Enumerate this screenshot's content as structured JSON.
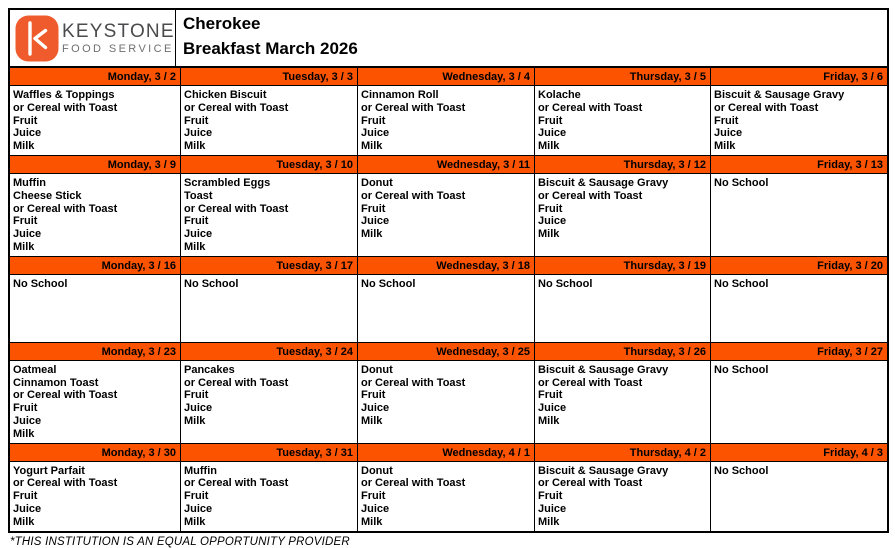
{
  "brand": {
    "name": "KEYSTONE",
    "tagline": "FOOD SERVICE",
    "logo_color": "#EF5B2D"
  },
  "header": {
    "school": "Cherokee",
    "title": "Breakfast March 2026"
  },
  "colors": {
    "day_header_bg": "#FB5300",
    "grid_border": "#000000",
    "brand_name_color": "#4B4B4D",
    "brand_tagline_color": "#6E6F72"
  },
  "calendar": {
    "weeks": [
      [
        {
          "day": "Monday, 3 / 2",
          "items": [
            "Waffles & Toppings",
            "or Cereal with Toast",
            "Fruit",
            "Juice",
            "Milk"
          ]
        },
        {
          "day": "Tuesday, 3 / 3",
          "items": [
            "Chicken Biscuit",
            "or Cereal with Toast",
            "Fruit",
            "Juice",
            "Milk"
          ]
        },
        {
          "day": "Wednesday, 3 / 4",
          "items": [
            "Cinnamon Roll",
            "or Cereal with Toast",
            "Fruit",
            "Juice",
            "Milk"
          ]
        },
        {
          "day": "Thursday, 3 / 5",
          "items": [
            "Kolache",
            "or Cereal with Toast",
            "Fruit",
            "Juice",
            "Milk"
          ]
        },
        {
          "day": "Friday, 3 / 6",
          "items": [
            "Biscuit & Sausage Gravy",
            "or Cereal with Toast",
            "Fruit",
            "Juice",
            "Milk"
          ]
        }
      ],
      [
        {
          "day": "Monday, 3 / 9",
          "items": [
            "Muffin",
            "Cheese Stick",
            "or Cereal with Toast",
            "Fruit",
            "Juice",
            "Milk"
          ]
        },
        {
          "day": "Tuesday, 3 / 10",
          "items": [
            "Scrambled Eggs",
            "Toast",
            "or Cereal with Toast",
            "Fruit",
            "Juice",
            "Milk"
          ]
        },
        {
          "day": "Wednesday, 3 / 11",
          "items": [
            "Donut",
            "or Cereal with Toast",
            "Fruit",
            "Juice",
            "Milk"
          ]
        },
        {
          "day": "Thursday, 3 / 12",
          "items": [
            "Biscuit & Sausage Gravy",
            "or Cereal with Toast",
            "Fruit",
            "Juice",
            "Milk"
          ]
        },
        {
          "day": "Friday, 3 / 13",
          "items": [
            "No School"
          ]
        }
      ],
      [
        {
          "day": "Monday, 3 / 16",
          "items": [
            "No School"
          ]
        },
        {
          "day": "Tuesday, 3 / 17",
          "items": [
            "No School"
          ]
        },
        {
          "day": "Wednesday, 3 / 18",
          "items": [
            "No School"
          ]
        },
        {
          "day": "Thursday, 3 / 19",
          "items": [
            "No School"
          ]
        },
        {
          "day": "Friday, 3 / 20",
          "items": [
            "No School"
          ]
        }
      ],
      [
        {
          "day": "Monday, 3 / 23",
          "items": [
            "Oatmeal",
            "Cinnamon Toast",
            "or Cereal with Toast",
            "Fruit",
            "Juice",
            "Milk"
          ]
        },
        {
          "day": "Tuesday, 3 / 24",
          "items": [
            "Pancakes",
            "or Cereal with Toast",
            "Fruit",
            "Juice",
            "Milk"
          ]
        },
        {
          "day": "Wednesday, 3 / 25",
          "items": [
            "Donut",
            "or Cereal with Toast",
            "Fruit",
            "Juice",
            "Milk"
          ]
        },
        {
          "day": "Thursday, 3 / 26",
          "items": [
            "Biscuit & Sausage Gravy",
            "or Cereal with Toast",
            "Fruit",
            "Juice",
            "Milk"
          ]
        },
        {
          "day": "Friday, 3 / 27",
          "items": [
            "No School"
          ]
        }
      ],
      [
        {
          "day": "Monday, 3 / 30",
          "items": [
            "Yogurt Parfait",
            "or Cereal with Toast",
            "Fruit",
            "Juice",
            "Milk"
          ]
        },
        {
          "day": "Tuesday, 3 / 31",
          "items": [
            "Muffin",
            "or Cereal with Toast",
            "Fruit",
            "Juice",
            "Milk"
          ]
        },
        {
          "day": "Wednesday, 4 / 1",
          "items": [
            "Donut",
            "or Cereal with Toast",
            "Fruit",
            "Juice",
            "Milk"
          ]
        },
        {
          "day": "Thursday, 4 / 2",
          "items": [
            "Biscuit & Sausage Gravy",
            "or Cereal with Toast",
            "Fruit",
            "Juice",
            "Milk"
          ]
        },
        {
          "day": "Friday, 4 / 3",
          "items": [
            "No School"
          ]
        }
      ]
    ]
  },
  "footer": {
    "disclaimer": "*THIS INSTITUTION IS AN EQUAL OPPORTUNITY PROVIDER"
  }
}
